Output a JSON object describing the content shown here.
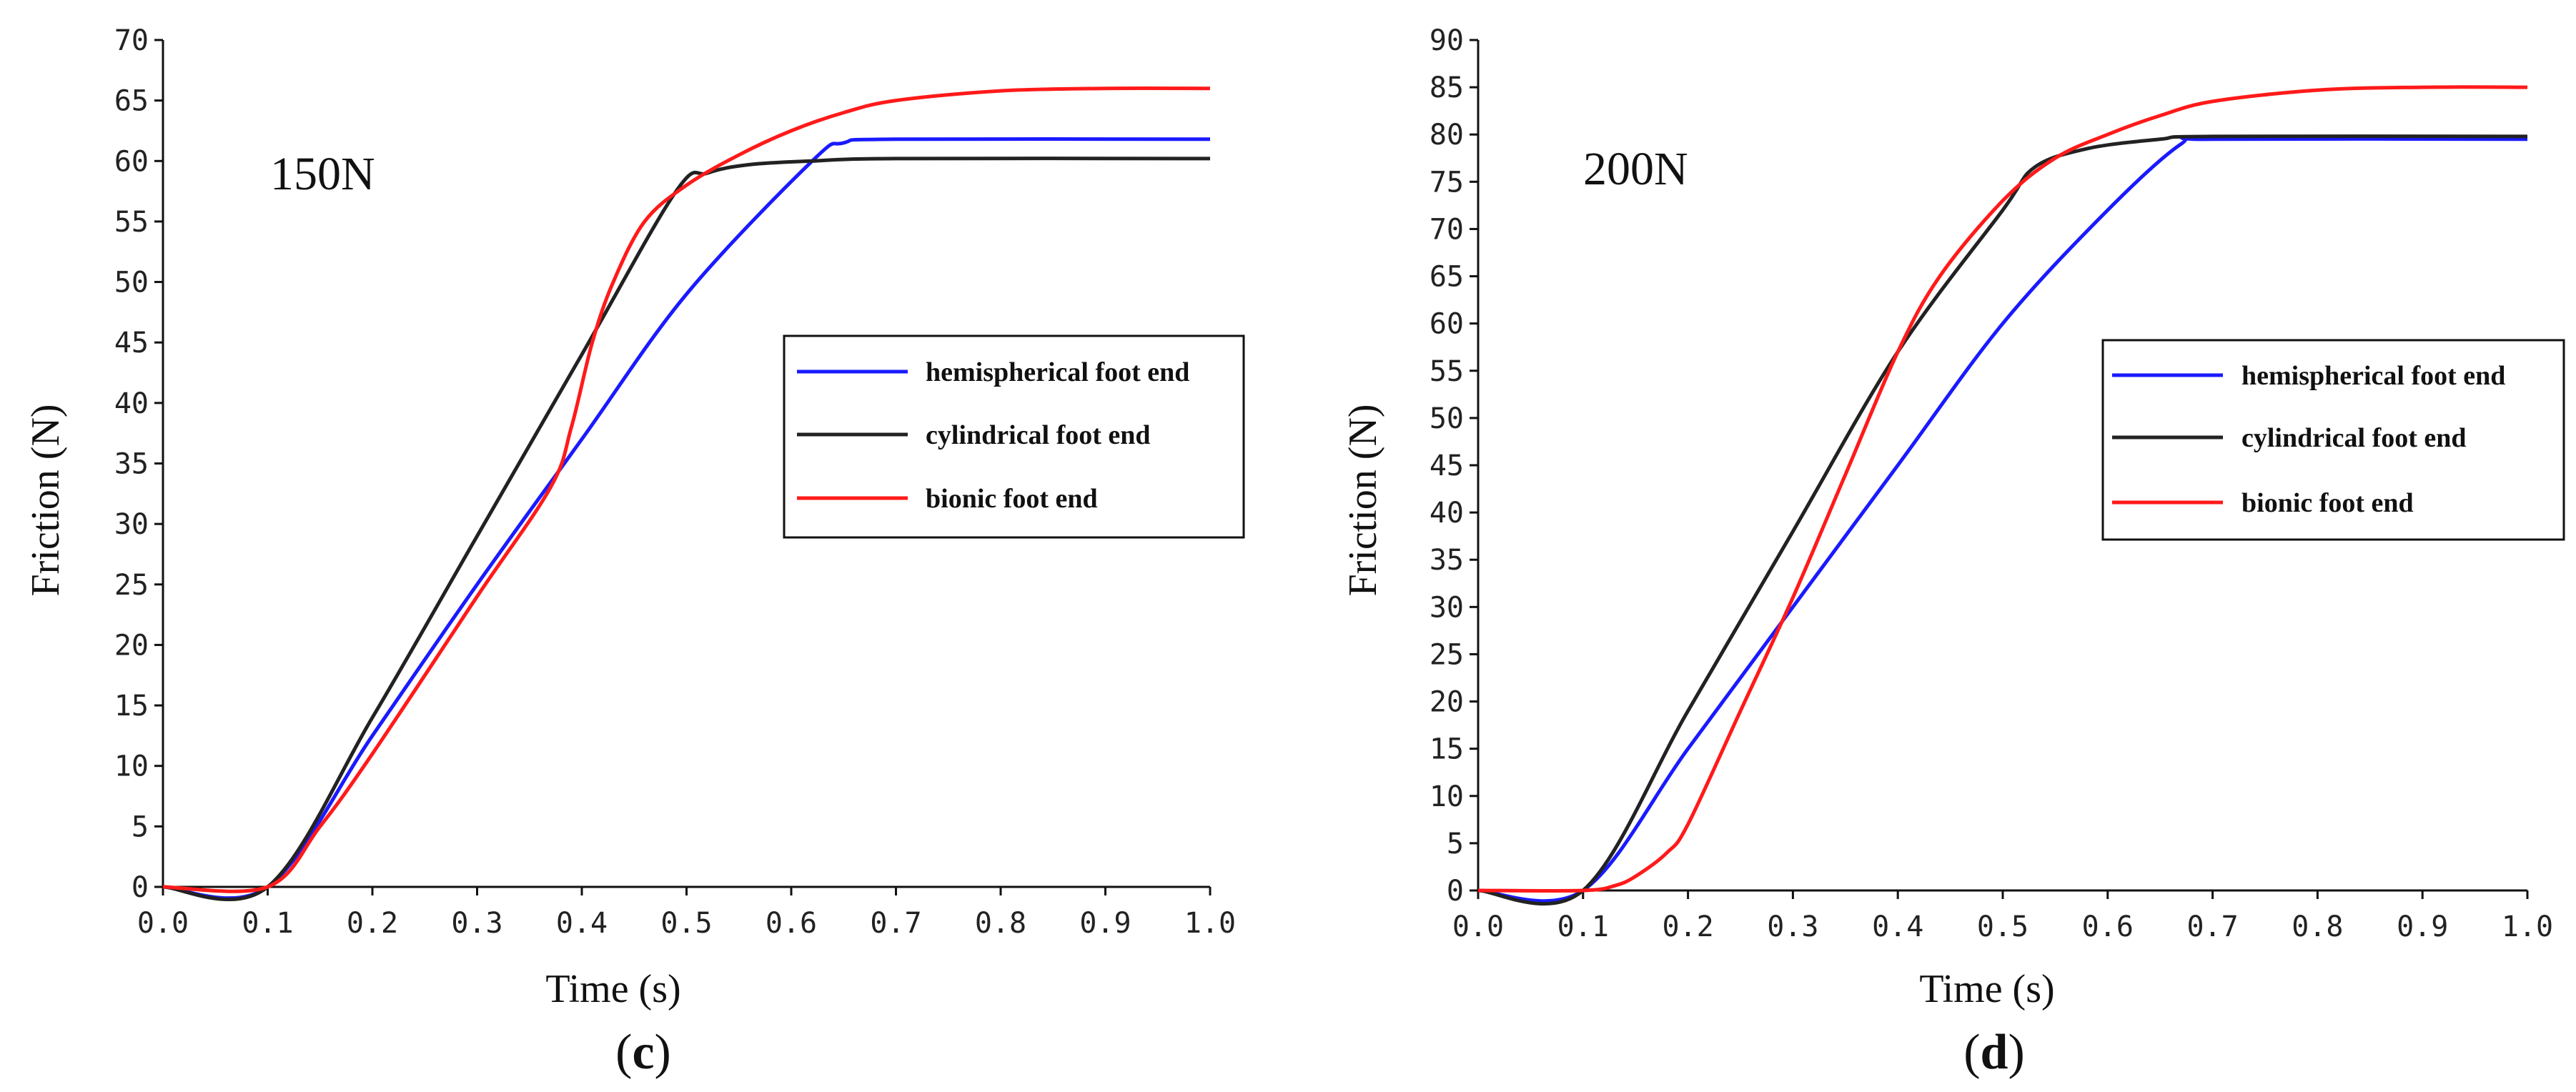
{
  "colors": {
    "hemispherical": "#1a1aff",
    "cylindrical": "#222222",
    "bionic": "#ff1a1a"
  },
  "chart_data": [
    {
      "type": "line",
      "panel": "c",
      "title": "150N",
      "caption": "(c)",
      "caption_open": "(",
      "caption_letter": "c",
      "caption_close": ")",
      "xlabel": "Time (s)",
      "ylabel": "Friction (N)",
      "xlim": [
        0,
        1.0
      ],
      "ylim": [
        0,
        70
      ],
      "xticks": [
        0,
        0.1,
        0.2,
        0.3,
        0.4,
        0.5,
        0.6,
        0.7,
        0.8,
        0.9,
        1.0
      ],
      "xtick_labels": [
        "0.0",
        "0.1",
        "0.2",
        "0.3",
        "0.4",
        "0.5",
        "0.6",
        "0.7",
        "0.8",
        "0.9",
        "1.0"
      ],
      "yticks": [
        0,
        5,
        10,
        15,
        20,
        25,
        30,
        35,
        40,
        45,
        50,
        55,
        60,
        65,
        70
      ],
      "ytick_labels": [
        "0",
        "5",
        "10",
        "15",
        "20",
        "25",
        "30",
        "35",
        "40",
        "45",
        "50",
        "55",
        "60",
        "65",
        "70"
      ],
      "grid": false,
      "legend": "center-right",
      "series": [
        {
          "name": "hemispherical foot end",
          "key": "hemispherical",
          "x": [
            0,
            0.1,
            0.2,
            0.3,
            0.4,
            0.5,
            0.62,
            0.65,
            0.7,
            1.0
          ],
          "y": [
            0,
            0,
            12.5,
            25,
            37,
            49,
            60,
            61.5,
            61.8,
            61.8
          ]
        },
        {
          "name": "cylindrical foot end",
          "key": "cylindrical",
          "x": [
            0,
            0.1,
            0.2,
            0.3,
            0.4,
            0.49,
            0.52,
            0.56,
            0.62,
            0.7,
            1.0
          ],
          "y": [
            0,
            0,
            14,
            29,
            44,
            57.5,
            59,
            59.7,
            60,
            60.2,
            60.2
          ]
        },
        {
          "name": "bionic foot end",
          "key": "bionic",
          "x": [
            0,
            0.1,
            0.15,
            0.2,
            0.3,
            0.37,
            0.39,
            0.41,
            0.43,
            0.46,
            0.5,
            0.55,
            0.6,
            0.65,
            0.7,
            0.8,
            0.9,
            1.0
          ],
          "y": [
            0,
            0,
            5,
            11,
            24,
            33,
            38,
            45,
            50,
            55,
            58,
            60.5,
            62.5,
            64,
            65,
            65.8,
            66,
            66
          ]
        }
      ]
    },
    {
      "type": "line",
      "panel": "d",
      "title": "200N",
      "caption": "(d)",
      "caption_open": "(",
      "caption_letter": "d",
      "caption_close": ")",
      "xlabel": "Time (s)",
      "ylabel": "Friction (N)",
      "xlim": [
        0,
        1.0
      ],
      "ylim": [
        0,
        90
      ],
      "xticks": [
        0,
        0.1,
        0.2,
        0.3,
        0.4,
        0.5,
        0.6,
        0.7,
        0.8,
        0.9,
        1.0
      ],
      "xtick_labels": [
        "0.0",
        "0.1",
        "0.2",
        "0.3",
        "0.4",
        "0.5",
        "0.6",
        "0.7",
        "0.8",
        "0.9",
        "1.0"
      ],
      "yticks": [
        0,
        5,
        10,
        15,
        20,
        25,
        30,
        35,
        40,
        45,
        50,
        55,
        60,
        65,
        70,
        75,
        80,
        85,
        90
      ],
      "ytick_labels": [
        "0",
        "5",
        "10",
        "15",
        "20",
        "25",
        "30",
        "35",
        "40",
        "45",
        "50",
        "55",
        "60",
        "65",
        "70",
        "75",
        "80",
        "85",
        "90"
      ],
      "grid": false,
      "legend": "center-right",
      "series": [
        {
          "name": "hemispherical foot end",
          "key": "hemispherical",
          "x": [
            0,
            0.1,
            0.2,
            0.3,
            0.4,
            0.5,
            0.6,
            0.67,
            0.7,
            1.0
          ],
          "y": [
            0,
            0,
            15,
            30,
            45,
            60,
            72,
            79,
            79.5,
            79.5
          ]
        },
        {
          "name": "cylindrical foot end",
          "key": "cylindrical",
          "x": [
            0,
            0.1,
            0.2,
            0.3,
            0.4,
            0.5,
            0.53,
            0.58,
            0.65,
            0.7,
            1.0
          ],
          "y": [
            0,
            0,
            19,
            38,
            57,
            72,
            76.5,
            78.5,
            79.5,
            79.8,
            79.8
          ]
        },
        {
          "name": "bionic foot end",
          "key": "bionic",
          "x": [
            0,
            0.1,
            0.13,
            0.15,
            0.18,
            0.2,
            0.25,
            0.3,
            0.35,
            0.4,
            0.44,
            0.5,
            0.55,
            0.6,
            0.65,
            0.7,
            0.8,
            0.9,
            1.0
          ],
          "y": [
            0,
            0,
            0.5,
            1.5,
            4,
            7,
            19,
            31,
            44,
            57,
            65,
            73,
            77.5,
            80,
            82,
            83.5,
            84.7,
            85,
            85
          ]
        }
      ]
    }
  ]
}
